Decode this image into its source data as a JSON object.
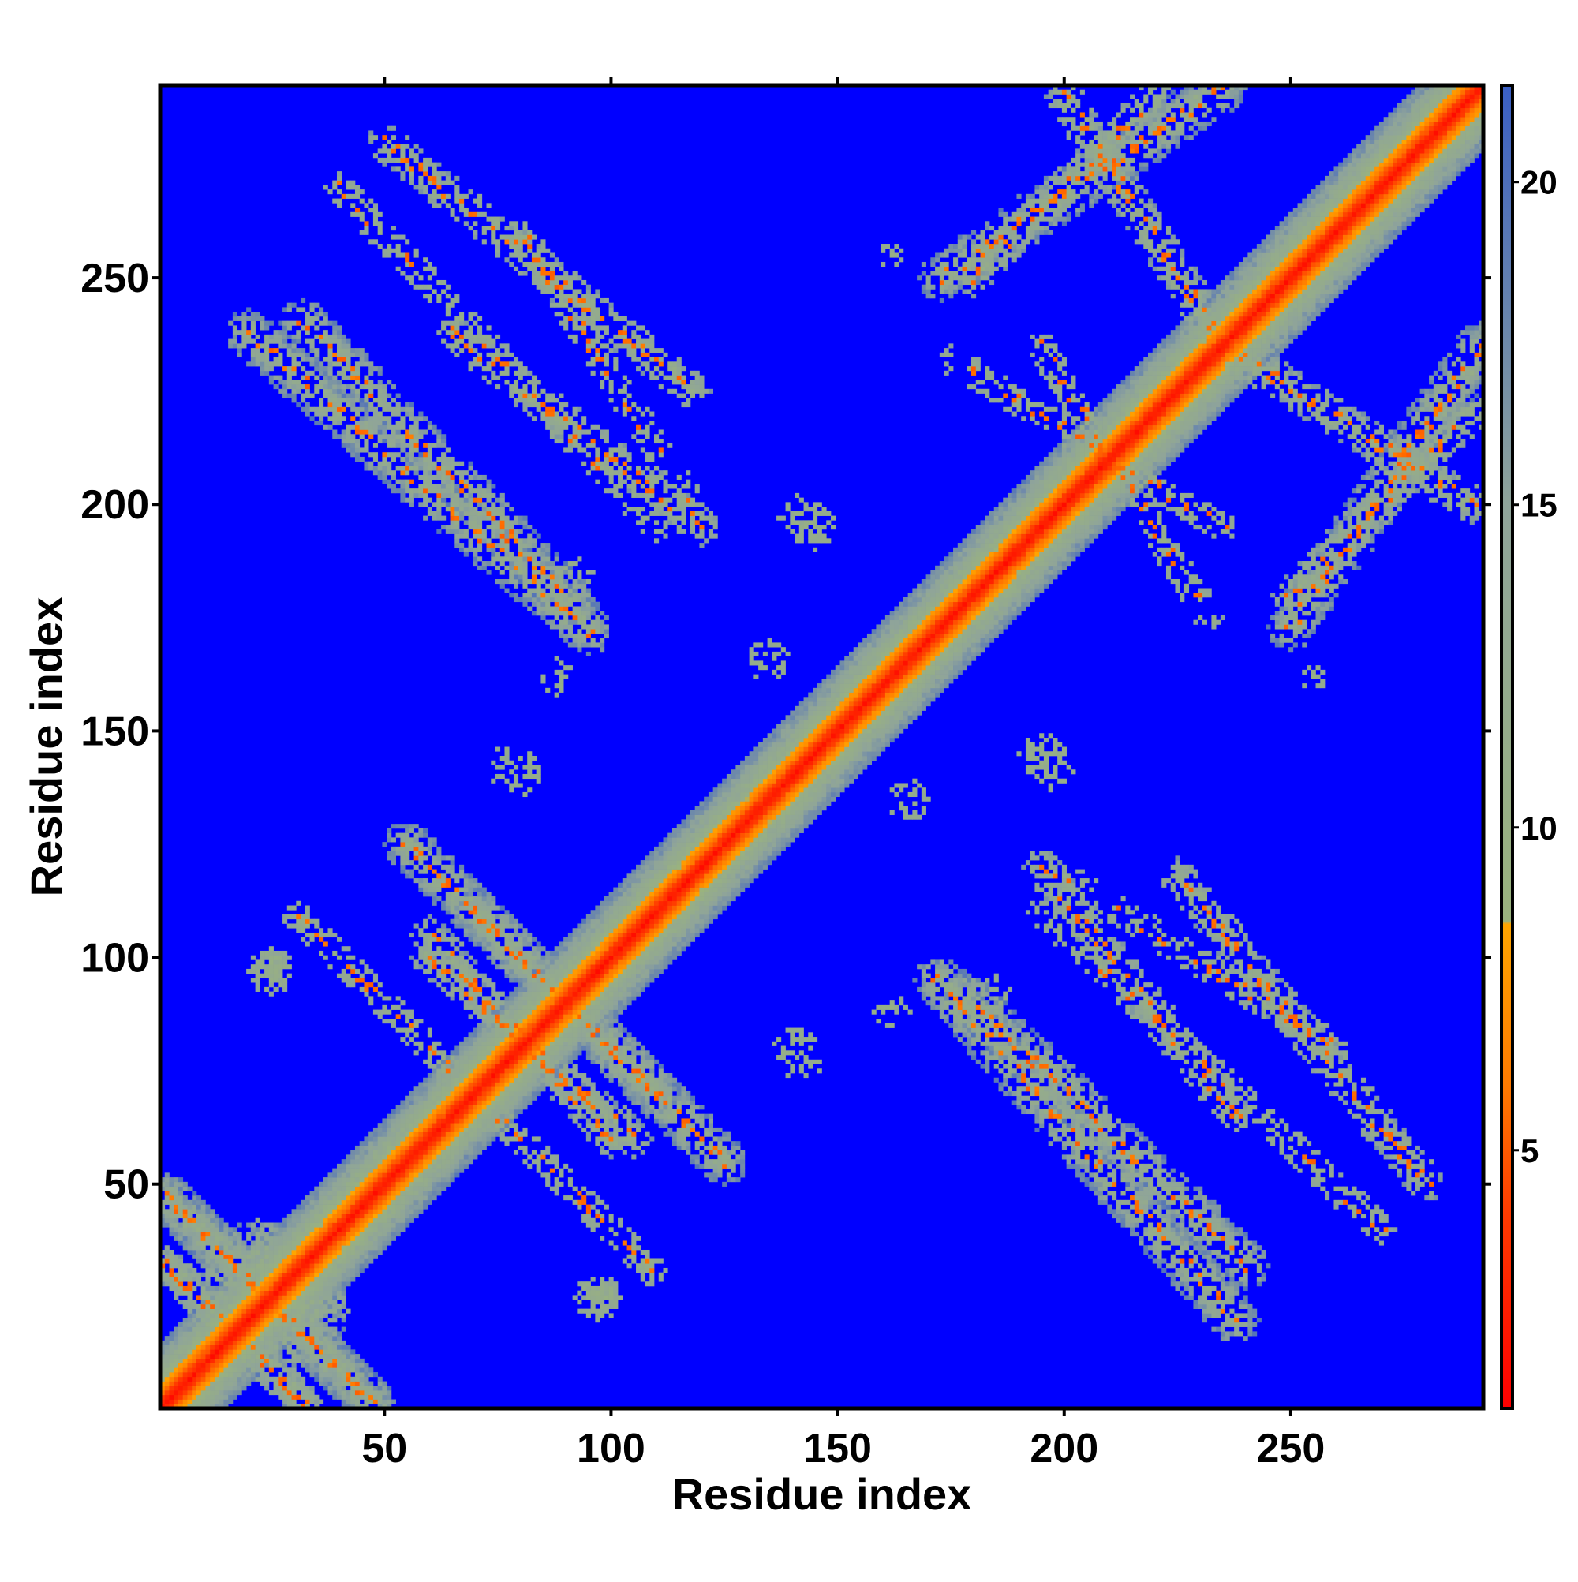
{
  "chart_data": {
    "type": "heatmap",
    "title": "",
    "xlabel": "Residue index",
    "ylabel": "Residue index",
    "n_residues": 292,
    "xlim": [
      1,
      292
    ],
    "ylim": [
      1,
      292
    ],
    "x_ticks": [
      50,
      100,
      150,
      200,
      250
    ],
    "y_ticks": [
      50,
      100,
      150,
      200,
      250
    ],
    "colorbar": {
      "ticks": [
        5,
        10,
        15,
        20
      ],
      "range": [
        1.0,
        21.5
      ],
      "stops": [
        {
          "value": 1.0,
          "color": "#ff0000"
        },
        {
          "value": 4.0,
          "color": "#ff3a00"
        },
        {
          "value": 6.0,
          "color": "#ff7a00"
        },
        {
          "value": 8.5,
          "color": "#ffa500"
        },
        {
          "value": 8.55,
          "color": "#9ab37d"
        },
        {
          "value": 15.0,
          "color": "#8fa49a"
        },
        {
          "value": 21.5,
          "color": "#3a5fc4"
        }
      ]
    },
    "background_color": "#0000ff",
    "diagonal_band": {
      "core_width": 5,
      "outer_width": 14
    },
    "contact_features": [
      {
        "kind": "anti",
        "from": [
          2,
          47
        ],
        "to": [
          47,
          2
        ],
        "width": 5,
        "density": 0.72
      },
      {
        "kind": "anti",
        "from": [
          2,
          32
        ],
        "to": [
          32,
          2
        ],
        "width": 4,
        "density": 0.6
      },
      {
        "kind": "anti",
        "from": [
          55,
          125
        ],
        "to": [
          110,
          70
        ],
        "width": 5,
        "density": 0.62
      },
      {
        "kind": "anti",
        "from": [
          60,
          105
        ],
        "to": [
          100,
          60
        ],
        "width": 4,
        "density": 0.55
      },
      {
        "kind": "anti",
        "from": [
          70,
          70
        ],
        "to": [
          110,
          30
        ],
        "width": 3,
        "density": 0.45
      },
      {
        "kind": "anti",
        "from": [
          178,
          92
        ],
        "to": [
          240,
          32
        ],
        "width": 5,
        "density": 0.62
      },
      {
        "kind": "anti",
        "from": [
          225,
          118
        ],
        "to": [
          280,
          50
        ],
        "width": 4,
        "density": 0.5
      },
      {
        "kind": "anti",
        "from": [
          200,
          118
        ],
        "to": [
          260,
          80
        ],
        "width": 3,
        "density": 0.4
      },
      {
        "kind": "anti",
        "from": [
          20,
          238
        ],
        "to": [
          95,
          172
        ],
        "width": 5,
        "density": 0.62
      },
      {
        "kind": "anti",
        "from": [
          65,
          238
        ],
        "to": [
          120,
          195
        ],
        "width": 4,
        "density": 0.45
      },
      {
        "kind": "anti",
        "from": [
          40,
          270
        ],
        "to": [
          110,
          195
        ],
        "width": 3,
        "density": 0.4
      },
      {
        "kind": "anti",
        "from": [
          173,
          250
        ],
        "to": [
          235,
          292
        ],
        "width": 5,
        "density": 0.6
      },
      {
        "kind": "anti",
        "from": [
          240,
          232
        ],
        "to": [
          290,
          200
        ],
        "width": 4,
        "density": 0.55
      },
      {
        "kind": "anti",
        "from": [
          250,
          180
        ],
        "to": [
          290,
          220
        ],
        "width": 4,
        "density": 0.5
      },
      {
        "kind": "anti",
        "from": [
          175,
          232
        ],
        "to": [
          235,
          195
        ],
        "width": 3,
        "density": 0.4
      },
      {
        "kind": "blob",
        "center": [
          22,
          30
        ],
        "radius": 12,
        "density": 0.65
      },
      {
        "kind": "blob",
        "center": [
          97,
          25
        ],
        "radius": 5,
        "density": 0.5
      },
      {
        "kind": "blob",
        "center": [
          25,
          98
        ],
        "radius": 4,
        "density": 0.5
      },
      {
        "kind": "blob",
        "center": [
          78,
          142
        ],
        "radius": 5,
        "density": 0.35
      },
      {
        "kind": "blob",
        "center": [
          140,
          80
        ],
        "radius": 5,
        "density": 0.35
      },
      {
        "kind": "blob",
        "center": [
          143,
          197
        ],
        "radius": 6,
        "density": 0.3
      },
      {
        "kind": "blob",
        "center": [
          195,
          145
        ],
        "radius": 5,
        "density": 0.3
      },
      {
        "kind": "blob",
        "center": [
          165,
          135
        ],
        "radius": 5,
        "density": 0.3
      },
      {
        "kind": "blob",
        "center": [
          185,
          92
        ],
        "radius": 4,
        "density": 0.45
      },
      {
        "kind": "blob",
        "center": [
          255,
          162
        ],
        "radius": 3,
        "density": 0.4
      },
      {
        "kind": "blob",
        "center": [
          88,
          162
        ],
        "radius": 4,
        "density": 0.45
      }
    ]
  }
}
